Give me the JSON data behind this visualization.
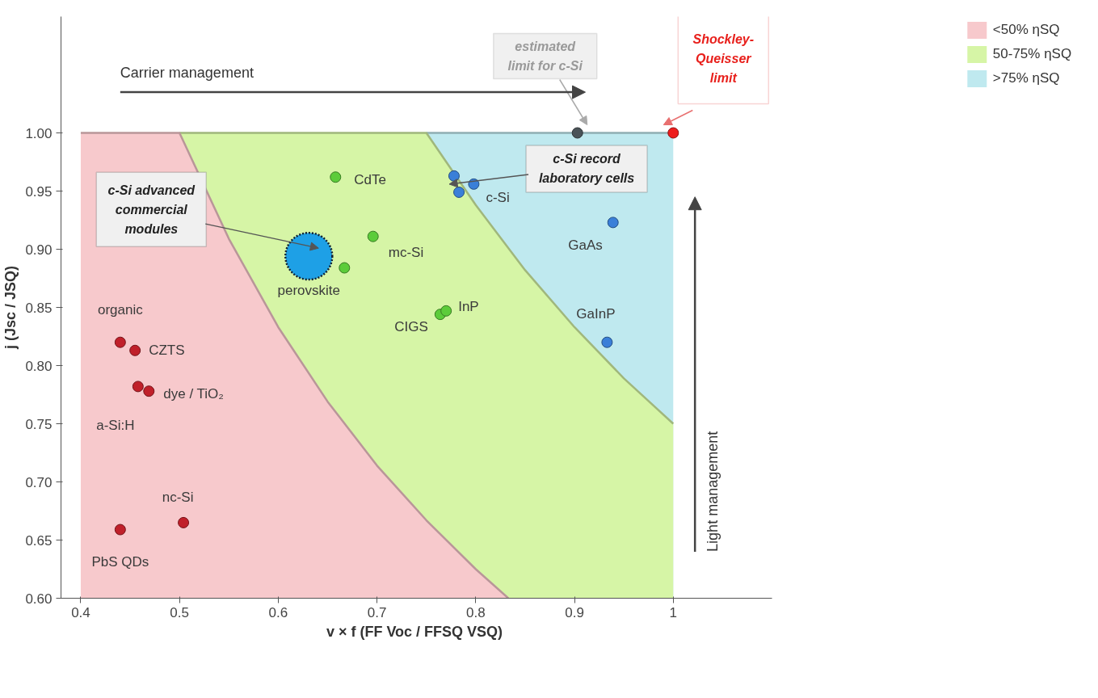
{
  "chart_data": {
    "type": "scatter",
    "xlabel": "v × f  (FF Voc / FFSQ VSQ)",
    "ylabel": "j (Jsc / JSQ)",
    "xlim": [
      0.38,
      1.1
    ],
    "ylim": [
      0.6,
      1.1
    ],
    "xticks": [
      0.4,
      0.5,
      0.6,
      0.7,
      0.8,
      0.9,
      1
    ],
    "yticks": [
      {
        "value": 0.6,
        "label": "0.60"
      },
      {
        "value": 0.65,
        "label": "0.65"
      },
      {
        "value": 0.7,
        "label": "0.70"
      },
      {
        "value": 0.75,
        "label": "0.75"
      },
      {
        "value": 0.8,
        "label": "0.80"
      },
      {
        "value": 0.85,
        "label": "0.85"
      },
      {
        "value": 0.9,
        "label": "0.90"
      },
      {
        "value": 0.95,
        "label": "0.95"
      },
      {
        "value": 1.0,
        "label": "1.00"
      }
    ],
    "grid": false,
    "legend": "right",
    "series": [
      {
        "type": "area",
        "name": "<50% ηSQ",
        "color": "#f7c9cc",
        "x": [
          0.4,
          0.5,
          0.55,
          0.6,
          0.65,
          0.7,
          0.75,
          0.8,
          0.833
        ],
        "values": [
          1.0,
          1.0,
          0.909,
          0.833,
          0.769,
          0.714,
          0.667,
          0.625,
          0.6
        ]
      },
      {
        "type": "area",
        "name": "50-75% ηSQ",
        "color": "#d6f5a6",
        "x": [
          0.5,
          0.75,
          0.8,
          0.85,
          0.9,
          0.95,
          1.0
        ],
        "values": [
          1.0,
          1.0,
          0.938,
          0.882,
          0.833,
          0.789,
          0.75
        ]
      },
      {
        "type": "area",
        "name": ">75% ηSQ",
        "color": "#bfe9ef",
        "x": [
          0.75,
          1.0
        ],
        "values": [
          1.0,
          1.0
        ]
      },
      {
        "marker": "circle",
        "color": "#c0202a",
        "x": [
          0.44,
          0.455,
          0.458,
          0.469,
          0.44,
          0.504
        ],
        "values": [
          0.82,
          0.813,
          0.782,
          0.778,
          0.659,
          0.665
        ]
      },
      {
        "marker": "circle",
        "color": "#5ccc3a",
        "x": [
          0.658,
          0.696,
          0.667,
          0.764,
          0.77
        ],
        "values": [
          0.962,
          0.911,
          0.884,
          0.844,
          0.847
        ]
      },
      {
        "marker": "circle",
        "color": "#3a7fd8",
        "x": [
          0.778,
          0.783,
          0.798,
          0.939,
          0.933
        ],
        "values": [
          0.963,
          0.949,
          0.956,
          0.923,
          0.82
        ]
      },
      {
        "type": "bubble",
        "marker": "circle",
        "color": "#1ea0e6",
        "x": [
          0.631
        ],
        "values": [
          0.894
        ],
        "sizes": [
          1
        ]
      },
      {
        "marker": "circle",
        "color": "#4a5358",
        "x": [
          0.903
        ],
        "values": [
          1.0
        ]
      },
      {
        "marker": "circle",
        "color": "#ee1c1c",
        "x": [
          1.0
        ],
        "values": [
          1.0
        ]
      }
    ],
    "annotations": [
      {
        "text": "organic",
        "x": 0.44,
        "y": 0.82
      },
      {
        "text": "CZTS",
        "x": 0.455,
        "y": 0.813
      },
      {
        "text": "dye / TiO₂",
        "x": 0.469,
        "y": 0.778
      },
      {
        "text": "a-Si:H",
        "x": 0.458,
        "y": 0.782
      },
      {
        "text": "nc-Si",
        "x": 0.504,
        "y": 0.665
      },
      {
        "text": "PbS QDs",
        "x": 0.44,
        "y": 0.659
      },
      {
        "text": "CdTe",
        "x": 0.658,
        "y": 0.962
      },
      {
        "text": "mc-Si",
        "x": 0.696,
        "y": 0.911
      },
      {
        "text": "perovskite",
        "x": 0.631,
        "y": 0.894
      },
      {
        "text": "CIGS",
        "x": 0.764,
        "y": 0.844
      },
      {
        "text": "InP",
        "x": 0.77,
        "y": 0.847
      },
      {
        "text": "c-Si",
        "x": 0.798,
        "y": 0.956
      },
      {
        "text": "GaAs",
        "x": 0.939,
        "y": 0.923
      },
      {
        "text": "GaInP",
        "x": 0.933,
        "y": 0.82
      },
      "c-Si advanced commercial modules",
      "c-Si record laboratory cells",
      "estimated limit for c-Si",
      "Shockley-Queisser limit",
      "Carrier management",
      "Light management"
    ]
  }
}
